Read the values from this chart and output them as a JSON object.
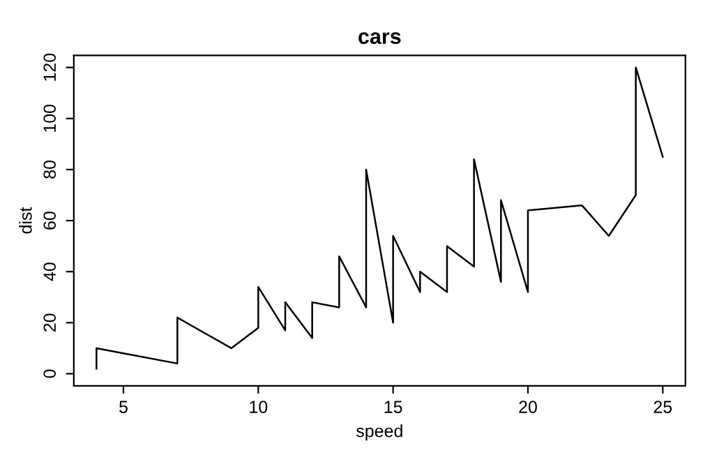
{
  "chart_data": {
    "type": "line",
    "title": "cars",
    "xlabel": "speed",
    "ylabel": "dist",
    "x": [
      4,
      4,
      7,
      7,
      8,
      9,
      10,
      10,
      10,
      11,
      11,
      12,
      12,
      12,
      12,
      13,
      13,
      13,
      13,
      14,
      14,
      14,
      14,
      15,
      15,
      15,
      16,
      16,
      17,
      17,
      17,
      18,
      18,
      18,
      18,
      19,
      19,
      19,
      20,
      20,
      20,
      20,
      20,
      22,
      23,
      24,
      24,
      24,
      24,
      25
    ],
    "series": [
      {
        "color": "#000000",
        "values": [
          2,
          10,
          4,
          22,
          16,
          10,
          18,
          26,
          34,
          17,
          28,
          14,
          20,
          24,
          28,
          26,
          34,
          34,
          46,
          26,
          36,
          60,
          80,
          20,
          26,
          54,
          32,
          40,
          32,
          40,
          50,
          42,
          56,
          76,
          84,
          36,
          46,
          68,
          32,
          48,
          52,
          56,
          64,
          66,
          54,
          70,
          92,
          93,
          120,
          85
        ]
      }
    ],
    "xlim": [
      3.16,
      25.84
    ],
    "ylim": [
      -4.72,
      124.72
    ],
    "xticks": [
      5,
      10,
      15,
      20,
      25
    ],
    "yticks": [
      0,
      20,
      40,
      60,
      80,
      100,
      120
    ],
    "grid": false,
    "legend": false,
    "marker": "none",
    "line_style": "solid"
  }
}
